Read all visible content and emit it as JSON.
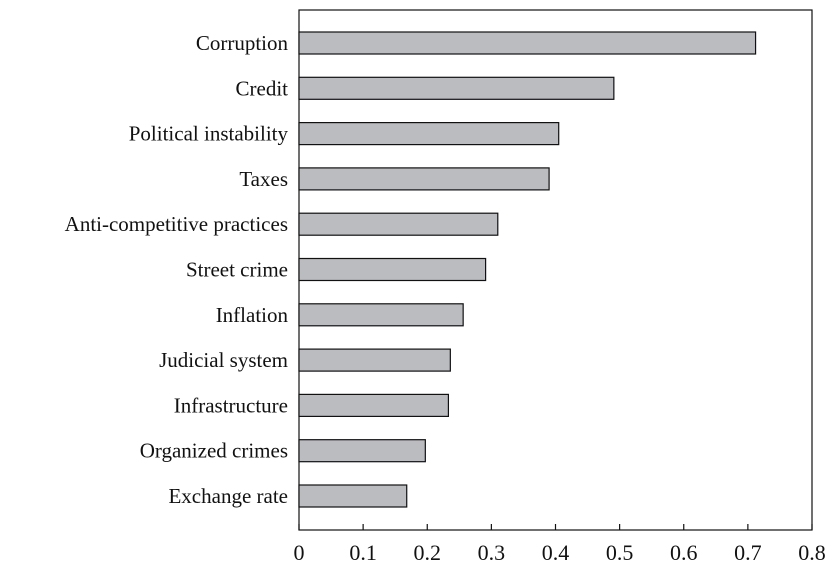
{
  "chart_data": {
    "type": "bar",
    "orientation": "horizontal",
    "categories": [
      "Corruption",
      "Credit",
      "Political instability",
      "Taxes",
      "Anti-competitive practices",
      "Street crime",
      "Inflation",
      "Judicial system",
      "Infrastructure",
      "Organized crimes",
      "Exchange rate"
    ],
    "values": [
      0.712,
      0.491,
      0.405,
      0.39,
      0.31,
      0.291,
      0.256,
      0.236,
      0.233,
      0.197,
      0.168
    ],
    "xlim": [
      0,
      0.8
    ],
    "xticks": [
      "0",
      "0.1",
      "0.2",
      "0.3",
      "0.4",
      "0.5",
      "0.6",
      "0.7",
      "0.8"
    ],
    "title": "",
    "xlabel": "",
    "ylabel": "",
    "grid": false,
    "bar_color": "#bbbcc0",
    "bar_edge_color": "#111111"
  }
}
